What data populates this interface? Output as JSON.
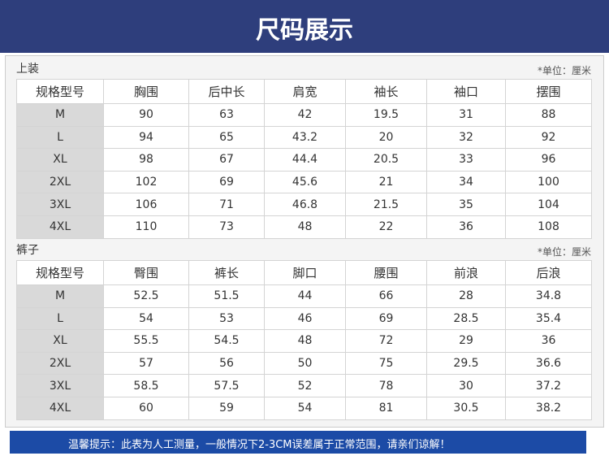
{
  "header": {
    "title": "尺码展示"
  },
  "sections": [
    {
      "label": "上装",
      "unit_note": "*单位：厘米",
      "table": {
        "columns": [
          "规格型号",
          "胸围",
          "后中长",
          "肩宽",
          "袖长",
          "袖口",
          "摆围"
        ],
        "rows": [
          [
            "M",
            90,
            63,
            42,
            19.5,
            31,
            88
          ],
          [
            "L",
            94,
            65,
            43.2,
            20,
            32,
            92
          ],
          [
            "XL",
            98,
            67,
            44.4,
            20.5,
            33,
            96
          ],
          [
            "2XL",
            102,
            69,
            45.6,
            21,
            34,
            100
          ],
          [
            "3XL",
            106,
            71,
            46.8,
            21.5,
            35,
            104
          ],
          [
            "4XL",
            110,
            73,
            48,
            22,
            36,
            108
          ]
        ]
      }
    },
    {
      "label": "裤子",
      "unit_note": "*单位：厘米",
      "table": {
        "columns": [
          "规格型号",
          "臀围",
          "裤长",
          "脚口",
          "腰围",
          "前浪",
          "后浪"
        ],
        "rows": [
          [
            "M",
            52.5,
            51.5,
            44,
            66,
            28,
            34.8
          ],
          [
            "L",
            54,
            53,
            46,
            69,
            28.5,
            35.4
          ],
          [
            "XL",
            55.5,
            54.5,
            48,
            72,
            29,
            36
          ],
          [
            "2XL",
            57,
            56,
            50,
            75,
            29.5,
            36.6
          ],
          [
            "3XL",
            58.5,
            57.5,
            52,
            78,
            30,
            37.2
          ],
          [
            "4XL",
            60,
            59,
            54,
            81,
            30.5,
            38.2
          ]
        ]
      }
    }
  ],
  "footer": {
    "notice": "温馨提示：此表为人工测量，一般情况下2-3CM误差属于正常范围，请亲们谅解！"
  }
}
